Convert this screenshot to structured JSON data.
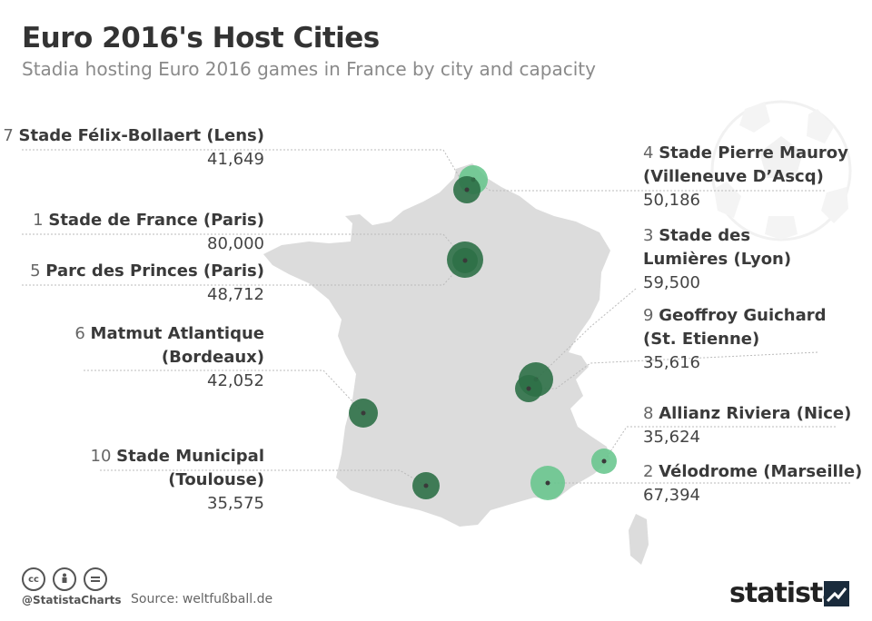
{
  "title": "Euro 2016's Host Cities",
  "subtitle": "Stadia hosting Euro 2016 games in France by city and capacity",
  "colors": {
    "map_fill": "#dcdcdc",
    "marker_dark": "#2e7047",
    "marker_light": "#63c489",
    "marker_dot": "#3a3a3a",
    "leader_line": "#bbbbbb"
  },
  "stadiums": [
    {
      "rank": "1",
      "name": "Stade de France (Paris)",
      "capacity": "80,000"
    },
    {
      "rank": "2",
      "name": "Vélodrome (Marseille)",
      "capacity": "67,394"
    },
    {
      "rank": "3",
      "name_line1": "Stade des",
      "name_line2": "Lumières (Lyon)",
      "capacity": "59,500"
    },
    {
      "rank": "4",
      "name_line1": "Stade Pierre Mauroy",
      "name_line2": "(Villeneuve D’Ascq)",
      "capacity": "50,186"
    },
    {
      "rank": "5",
      "name": "Parc des Princes (Paris)",
      "capacity": "48,712"
    },
    {
      "rank": "6",
      "name_line1": "Matmut Atlantique",
      "name_line2": "(Bordeaux)",
      "capacity": "42,052"
    },
    {
      "rank": "7",
      "name": "Stade Félix-Bollaert (Lens)",
      "capacity": "41,649"
    },
    {
      "rank": "8",
      "name": "Allianz Riviera (Nice)",
      "capacity": "35,624"
    },
    {
      "rank": "9",
      "name_line1": "Geoffroy Guichard",
      "name_line2": "(St. Etienne)",
      "capacity": "35,616"
    },
    {
      "rank": "10",
      "name_line1": "Stade Municipal",
      "name_line2": "(Toulouse)",
      "capacity": "35,575"
    }
  ],
  "footer": {
    "cc_icons": [
      "cc-icon",
      "by-icon",
      "nd-icon"
    ],
    "handle": "@StatistaCharts",
    "source_label": "Source:",
    "source_value": "weltfußball.de",
    "brand": "statista"
  }
}
